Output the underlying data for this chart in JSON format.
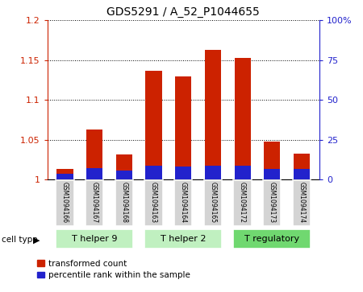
{
  "title": "GDS5291 / A_52_P1044655",
  "samples": [
    "GSM1094166",
    "GSM1094167",
    "GSM1094168",
    "GSM1094163",
    "GSM1094164",
    "GSM1094165",
    "GSM1094172",
    "GSM1094173",
    "GSM1094174"
  ],
  "transformed_count": [
    1.013,
    1.063,
    1.032,
    1.137,
    1.13,
    1.163,
    1.153,
    1.048,
    1.033
  ],
  "percentile_rank": [
    3.5,
    7.0,
    5.5,
    8.5,
    8.0,
    8.5,
    8.5,
    6.5,
    6.5
  ],
  "ylim_left": [
    1.0,
    1.2
  ],
  "ylim_right": [
    0,
    100
  ],
  "yticks_left": [
    1.0,
    1.05,
    1.1,
    1.15,
    1.2
  ],
  "yticks_right": [
    0,
    25,
    50,
    75,
    100
  ],
  "ytick_labels_left": [
    "1",
    "1.05",
    "1.1",
    "1.15",
    "1.2"
  ],
  "ytick_labels_right": [
    "0",
    "25",
    "50",
    "75",
    "100%"
  ],
  "cell_groups": [
    {
      "label": "T helper 9",
      "indices": [
        0,
        1,
        2
      ],
      "color": "#c0f0c0"
    },
    {
      "label": "T helper 2",
      "indices": [
        3,
        4,
        5
      ],
      "color": "#c0f0c0"
    },
    {
      "label": "T regulatory",
      "indices": [
        6,
        7,
        8
      ],
      "color": "#70d870"
    }
  ],
  "bar_color_red": "#cc2200",
  "bar_color_blue": "#2222cc",
  "bar_width": 0.55,
  "background_color": "#ffffff",
  "sample_box_color": "#d4d4d4",
  "legend_red_label": "transformed count",
  "legend_blue_label": "percentile rank within the sample",
  "left_axis_color": "#cc2200",
  "right_axis_color": "#2222cc"
}
